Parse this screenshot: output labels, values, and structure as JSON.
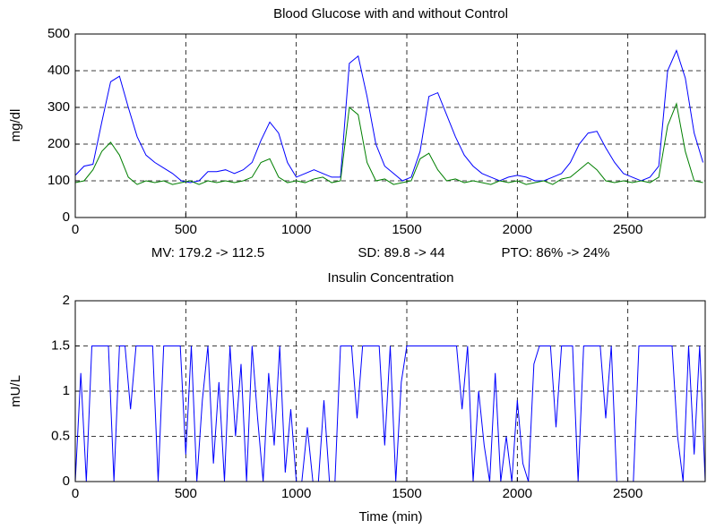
{
  "chart_data": [
    {
      "type": "line",
      "title": "Blood Glucose with and without Control",
      "y_label": "mg/dl",
      "annotations": [
        "MV: 179.2 -> 112.5",
        "SD: 89.8 -> 44",
        "PTO: 86% -> 24%"
      ],
      "x": [
        0,
        40,
        80,
        120,
        160,
        200,
        240,
        280,
        320,
        360,
        400,
        440,
        480,
        520,
        560,
        600,
        640,
        680,
        720,
        760,
        800,
        840,
        880,
        920,
        960,
        1000,
        1040,
        1080,
        1120,
        1160,
        1200,
        1240,
        1280,
        1320,
        1360,
        1400,
        1440,
        1480,
        1520,
        1560,
        1600,
        1640,
        1680,
        1720,
        1760,
        1800,
        1840,
        1880,
        1920,
        1960,
        2000,
        2040,
        2080,
        2120,
        2160,
        2200,
        2240,
        2280,
        2320,
        2360,
        2400,
        2440,
        2480,
        2520,
        2560,
        2600,
        2640,
        2680,
        2720,
        2760,
        2800,
        2840
      ],
      "series": [
        {
          "color": "#0000ff",
          "values": [
            115,
            140,
            145,
            260,
            370,
            385,
            300,
            220,
            170,
            150,
            135,
            120,
            100,
            95,
            100,
            125,
            125,
            130,
            120,
            130,
            150,
            210,
            260,
            230,
            150,
            110,
            120,
            130,
            120,
            110,
            110,
            420,
            440,
            330,
            200,
            140,
            120,
            100,
            110,
            180,
            330,
            340,
            280,
            220,
            170,
            140,
            120,
            110,
            100,
            110,
            115,
            110,
            100,
            100,
            110,
            120,
            150,
            200,
            230,
            235,
            190,
            150,
            120,
            110,
            100,
            110,
            140,
            400,
            455,
            380,
            230,
            150
          ]
        },
        {
          "color": "#007f00",
          "values": [
            95,
            100,
            130,
            180,
            205,
            170,
            110,
            90,
            100,
            95,
            100,
            90,
            95,
            100,
            90,
            100,
            95,
            100,
            95,
            100,
            110,
            150,
            160,
            110,
            95,
            100,
            95,
            105,
            110,
            95,
            100,
            300,
            280,
            150,
            100,
            105,
            90,
            95,
            100,
            160,
            175,
            130,
            100,
            105,
            95,
            100,
            95,
            90,
            100,
            95,
            100,
            90,
            95,
            100,
            90,
            105,
            110,
            130,
            150,
            130,
            100,
            95,
            100,
            95,
            100,
            95,
            110,
            250,
            310,
            180,
            100,
            95
          ]
        }
      ],
      "xlim": [
        0,
        2850
      ],
      "xticks": [
        0,
        500,
        1000,
        1500,
        2000,
        2500
      ],
      "ylim": [
        0,
        500
      ],
      "yticks": [
        0,
        100,
        200,
        300,
        400,
        500
      ],
      "grid": true
    },
    {
      "type": "line",
      "title": "Insulin Concentration",
      "x_label": "Time (min)",
      "y_label": "mU/L",
      "x": [
        0,
        25,
        50,
        75,
        100,
        125,
        150,
        175,
        200,
        225,
        250,
        275,
        300,
        325,
        350,
        375,
        400,
        425,
        450,
        475,
        500,
        525,
        550,
        575,
        600,
        625,
        650,
        675,
        700,
        725,
        750,
        775,
        800,
        825,
        850,
        875,
        900,
        925,
        950,
        975,
        1000,
        1025,
        1050,
        1075,
        1100,
        1125,
        1150,
        1175,
        1200,
        1225,
        1250,
        1275,
        1300,
        1325,
        1350,
        1375,
        1400,
        1425,
        1450,
        1475,
        1500,
        1525,
        1550,
        1575,
        1600,
        1625,
        1650,
        1675,
        1700,
        1725,
        1750,
        1775,
        1800,
        1825,
        1850,
        1875,
        1900,
        1925,
        1950,
        1975,
        2000,
        2025,
        2050,
        2075,
        2100,
        2125,
        2150,
        2175,
        2200,
        2225,
        2250,
        2275,
        2300,
        2325,
        2350,
        2375,
        2400,
        2425,
        2450,
        2475,
        2500,
        2525,
        2550,
        2575,
        2600,
        2625,
        2650,
        2675,
        2700,
        2725,
        2750,
        2775,
        2800,
        2825,
        2850
      ],
      "series": [
        {
          "color": "#0000ff",
          "values": [
            0,
            1.2,
            0,
            1.5,
            1.5,
            1.5,
            1.5,
            0,
            1.5,
            1.5,
            0.8,
            1.5,
            1.5,
            1.5,
            1.5,
            0,
            1.5,
            1.5,
            1.5,
            1.5,
            0.3,
            1.5,
            0,
            0.9,
            1.5,
            0.2,
            1.1,
            0,
            1.5,
            0.5,
            1.3,
            0,
            1.5,
            0.7,
            0,
            1.2,
            0.4,
            1.5,
            0.1,
            0.8,
            0,
            0,
            0.6,
            0,
            0,
            0.9,
            0,
            0,
            1.5,
            1.5,
            1.5,
            0.7,
            1.5,
            1.5,
            1.5,
            1.5,
            0.4,
            1.5,
            0,
            1.1,
            1.5,
            1.5,
            1.5,
            1.5,
            1.5,
            1.5,
            1.5,
            1.5,
            1.5,
            1.5,
            0.8,
            1.5,
            0,
            1,
            0.4,
            0,
            1.2,
            0,
            0.5,
            0,
            0.9,
            0.2,
            0,
            1.3,
            1.5,
            1.5,
            1.5,
            0.6,
            1.5,
            1.5,
            1.5,
            0,
            1.5,
            1.5,
            1.5,
            1.5,
            0.7,
            1.5,
            0,
            0,
            0,
            0,
            1.5,
            1.5,
            1.5,
            1.5,
            1.5,
            1.5,
            1.5,
            0.5,
            0,
            1.5,
            0.3,
            1.5,
            0
          ]
        }
      ],
      "xlim": [
        0,
        2850
      ],
      "xticks": [
        0,
        500,
        1000,
        1500,
        2000,
        2500
      ],
      "ylim": [
        0,
        2
      ],
      "yticks": [
        0,
        0.5,
        1,
        1.5,
        2
      ],
      "grid": true
    }
  ]
}
